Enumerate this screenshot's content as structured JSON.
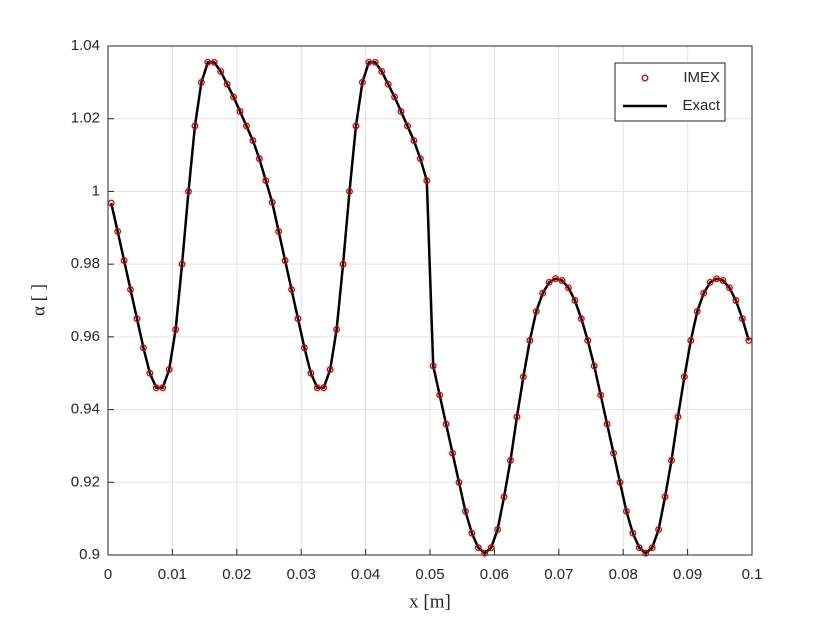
{
  "chart_data": {
    "type": "line",
    "xlabel": "x [m]",
    "ylabel": "α [ ]",
    "x": [
      0.0005,
      0.0015,
      0.0025,
      0.0035,
      0.0045,
      0.0055,
      0.0065,
      0.0075,
      0.0085,
      0.0095,
      0.0105,
      0.0115,
      0.0125,
      0.0135,
      0.0145,
      0.0155,
      0.0165,
      0.0175,
      0.0185,
      0.0195,
      0.0205,
      0.0215,
      0.0225,
      0.0235,
      0.0245,
      0.0255,
      0.0265,
      0.0275,
      0.0285,
      0.0295,
      0.0305,
      0.0315,
      0.0325,
      0.0335,
      0.0345,
      0.0355,
      0.0365,
      0.0375,
      0.0385,
      0.0395,
      0.0405,
      0.0415,
      0.0425,
      0.0435,
      0.0445,
      0.0455,
      0.0465,
      0.0475,
      0.0485,
      0.0495,
      0.0505,
      0.0515,
      0.0525,
      0.0535,
      0.0545,
      0.0555,
      0.0565,
      0.0575,
      0.0585,
      0.0595,
      0.0605,
      0.0615,
      0.0625,
      0.0635,
      0.0645,
      0.0655,
      0.0665,
      0.0675,
      0.0685,
      0.0695,
      0.0705,
      0.0715,
      0.0725,
      0.0735,
      0.0745,
      0.0755,
      0.0765,
      0.0775,
      0.0785,
      0.0795,
      0.0805,
      0.0815,
      0.0825,
      0.0835,
      0.0845,
      0.0855,
      0.0865,
      0.0875,
      0.0885,
      0.0895,
      0.0905,
      0.0915,
      0.0925,
      0.0935,
      0.0945,
      0.0955,
      0.0965,
      0.0975,
      0.0985,
      0.0995
    ],
    "series": [
      {
        "name": "IMEX",
        "color": "#e00000",
        "style": "marker",
        "values": [
          0.9968,
          0.989,
          0.981,
          0.973,
          0.965,
          0.957,
          0.95,
          0.946,
          0.946,
          0.951,
          0.962,
          0.98,
          1.0,
          1.018,
          1.03,
          1.0355,
          1.0355,
          1.033,
          1.0295,
          1.026,
          1.022,
          1.018,
          1.014,
          1.009,
          1.003,
          0.997,
          0.989,
          0.981,
          0.973,
          0.965,
          0.957,
          0.95,
          0.946,
          0.946,
          0.951,
          0.962,
          0.98,
          1.0,
          1.018,
          1.03,
          1.0355,
          1.0355,
          1.033,
          1.0295,
          1.026,
          1.022,
          1.018,
          1.014,
          1.009,
          1.003,
          0.952,
          0.944,
          0.936,
          0.928,
          0.92,
          0.912,
          0.906,
          0.902,
          0.9005,
          0.902,
          0.907,
          0.916,
          0.926,
          0.938,
          0.949,
          0.959,
          0.967,
          0.972,
          0.975,
          0.976,
          0.9755,
          0.9735,
          0.97,
          0.965,
          0.959,
          0.952,
          0.944,
          0.936,
          0.928,
          0.92,
          0.912,
          0.906,
          0.902,
          0.9005,
          0.902,
          0.907,
          0.916,
          0.926,
          0.938,
          0.949,
          0.959,
          0.967,
          0.972,
          0.975,
          0.976,
          0.9755,
          0.9735,
          0.97,
          0.965,
          0.959
        ]
      },
      {
        "name": "Exact",
        "color": "#000000",
        "style": "line",
        "values": [
          0.9968,
          0.989,
          0.981,
          0.973,
          0.965,
          0.957,
          0.95,
          0.946,
          0.946,
          0.951,
          0.962,
          0.98,
          1.0,
          1.018,
          1.03,
          1.0355,
          1.0355,
          1.033,
          1.0295,
          1.026,
          1.022,
          1.018,
          1.014,
          1.009,
          1.003,
          0.997,
          0.989,
          0.981,
          0.973,
          0.965,
          0.957,
          0.95,
          0.946,
          0.946,
          0.951,
          0.962,
          0.98,
          1.0,
          1.018,
          1.03,
          1.0355,
          1.0355,
          1.033,
          1.0295,
          1.026,
          1.022,
          1.018,
          1.014,
          1.009,
          1.003,
          0.952,
          0.944,
          0.936,
          0.928,
          0.92,
          0.912,
          0.906,
          0.902,
          0.9005,
          0.902,
          0.907,
          0.916,
          0.926,
          0.938,
          0.949,
          0.959,
          0.967,
          0.972,
          0.975,
          0.976,
          0.9755,
          0.9735,
          0.97,
          0.965,
          0.959,
          0.952,
          0.944,
          0.936,
          0.928,
          0.92,
          0.912,
          0.906,
          0.902,
          0.9005,
          0.902,
          0.907,
          0.916,
          0.926,
          0.938,
          0.949,
          0.959,
          0.967,
          0.972,
          0.975,
          0.976,
          0.9755,
          0.9735,
          0.97,
          0.965,
          0.959
        ]
      }
    ],
    "xlim": [
      0,
      0.1
    ],
    "xticks": [
      0,
      0.01,
      0.02,
      0.03,
      0.04,
      0.05,
      0.06,
      0.07,
      0.08,
      0.09,
      0.1
    ],
    "ylim": [
      0.9,
      1.04
    ],
    "yticks": [
      0.9,
      0.92,
      0.94,
      0.96,
      0.98,
      1,
      1.02,
      1.04
    ],
    "grid": true,
    "legend": "upper right"
  }
}
